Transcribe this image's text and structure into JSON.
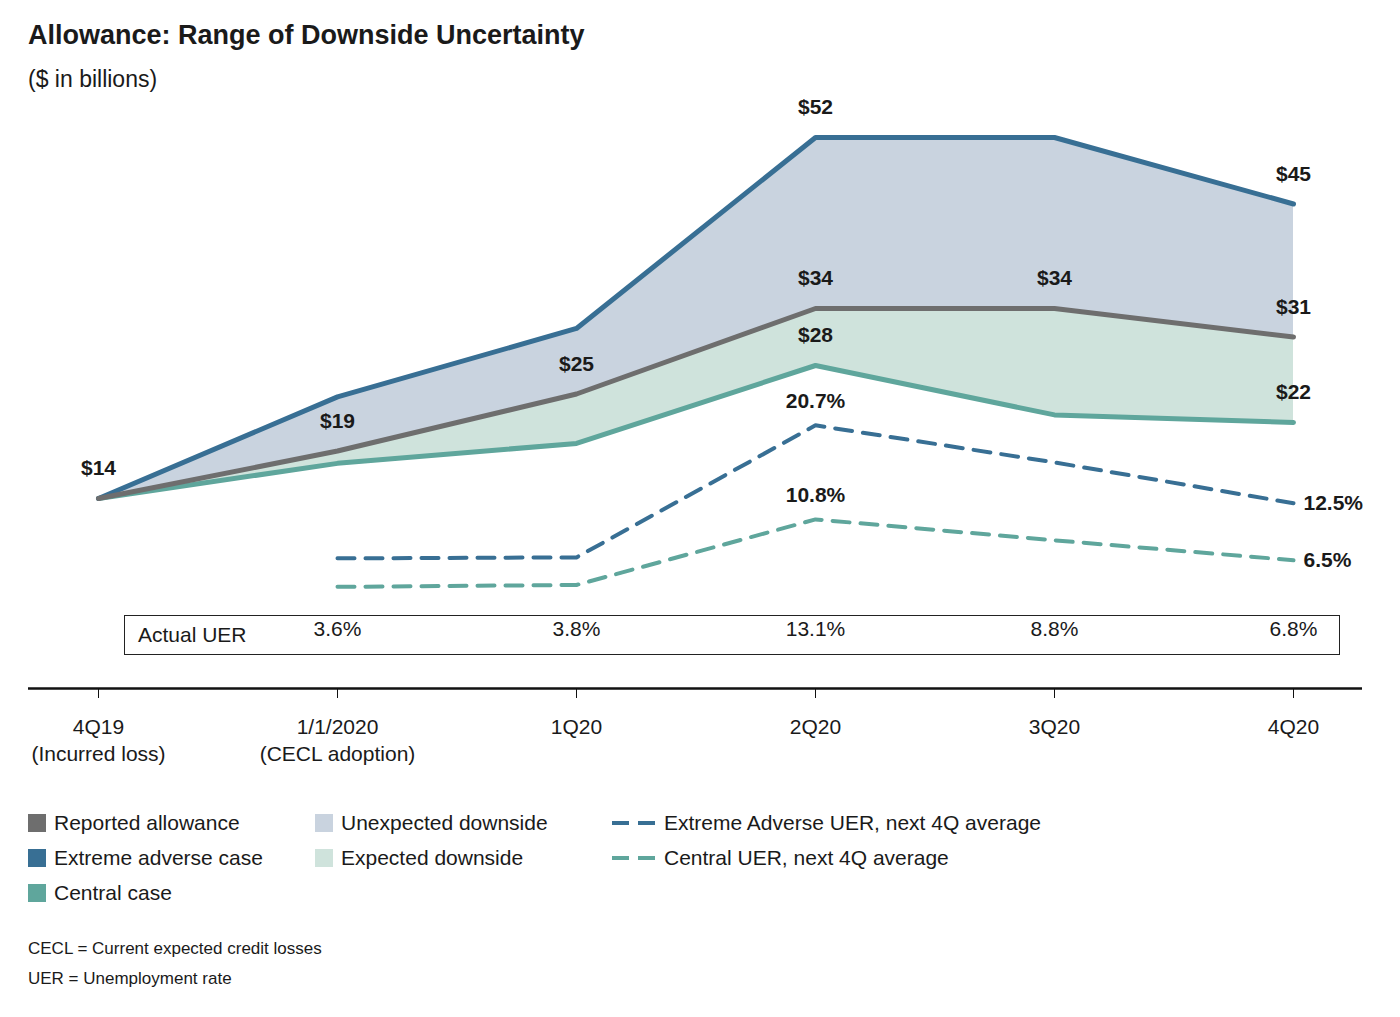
{
  "chart_data": {
    "type": "line",
    "title": "Allowance: Range of Downside Uncertainty",
    "subtitle": "($ in billions)",
    "categories": [
      "4Q19\n(Incurred loss)",
      "1/1/2020\n(CECL adoption)",
      "1Q20",
      "2Q20",
      "3Q20",
      "4Q20"
    ],
    "ylim": [
      -6,
      56
    ],
    "y2lim": [
      -7,
      55
    ],
    "tick_labels": "x",
    "data_labels": true,
    "legend": "bottom",
    "series": [
      {
        "name": "Reported allowance",
        "type": "line",
        "line_style": "solid",
        "color": "#6e6e6e",
        "values": [
          14,
          19,
          25,
          34,
          34,
          31
        ],
        "value_labels": [
          "$14",
          "$19",
          "$25",
          "$34",
          "$34",
          "$31"
        ]
      },
      {
        "name": "Extreme adverse case",
        "type": "line",
        "line_style": "solid",
        "color": "#386f94",
        "values": [
          14,
          24.7,
          31.9,
          52,
          52,
          45
        ],
        "value_labels": [
          null,
          null,
          null,
          "$52",
          null,
          "$45"
        ]
      },
      {
        "name": "Central case",
        "type": "line",
        "line_style": "solid",
        "color": "#5fa69c",
        "values": [
          14,
          17.7,
          19.8,
          28,
          22.8,
          22
        ],
        "value_labels": [
          null,
          null,
          null,
          "$28",
          null,
          "$22"
        ]
      },
      {
        "name": "Extreme Adverse UER, next 4Q average",
        "type": "line",
        "line_style": "dashed",
        "color": "#386f94",
        "axis": "y2",
        "values": [
          null,
          6.7,
          6.8,
          20.7,
          16.8,
          12.5
        ],
        "value_labels": [
          null,
          null,
          null,
          "20.7%",
          null,
          "12.5%"
        ]
      },
      {
        "name": "Central UER, next 4Q average",
        "type": "line",
        "line_style": "dashed",
        "color": "#5fa69c",
        "axis": "y2",
        "values": [
          null,
          3.7,
          3.9,
          10.8,
          8.6,
          6.5
        ],
        "value_labels": [
          null,
          null,
          null,
          "10.8%",
          null,
          "6.5%"
        ]
      }
    ],
    "areas": [
      {
        "name": "Unexpected downside",
        "color": "#c9d3df",
        "from": "Reported allowance",
        "to": "Extreme adverse case"
      },
      {
        "name": "Expected downside",
        "color": "#cfe3dc",
        "from": "Central case",
        "to": "Reported allowance"
      }
    ],
    "actual_uer": {
      "label": "Actual UER",
      "values": [
        null,
        3.6,
        3.8,
        13.1,
        8.8,
        6.8
      ],
      "value_labels": [
        null,
        "3.6%",
        "3.8%",
        "13.1%",
        "8.8%",
        "6.8%"
      ]
    },
    "notes": [
      "CECL = Current expected credit losses",
      "UER = Unemployment rate"
    ]
  }
}
